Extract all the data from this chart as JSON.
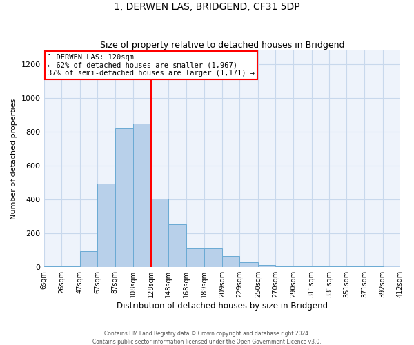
{
  "title": "1, DERWEN LAS, BRIDGEND, CF31 5DP",
  "subtitle": "Size of property relative to detached houses in Bridgend",
  "xlabel": "Distribution of detached houses by size in Bridgend",
  "ylabel": "Number of detached properties",
  "bar_color": "#b8d0ea",
  "bar_edge_color": "#6aaad4",
  "vline_x": 128,
  "vline_color": "red",
  "annotation_title": "1 DERWEN LAS: 120sqm",
  "annotation_line1": "← 62% of detached houses are smaller (1,967)",
  "annotation_line2": "37% of semi-detached houses are larger (1,171) →",
  "footer_line1": "Contains HM Land Registry data © Crown copyright and database right 2024.",
  "footer_line2": "Contains public sector information licensed under the Open Government Licence v3.0.",
  "bin_edges": [
    6,
    26,
    47,
    67,
    87,
    108,
    128,
    148,
    168,
    189,
    209,
    229,
    250,
    270,
    290,
    311,
    331,
    351,
    371,
    392,
    412
  ],
  "bin_labels": [
    "6sqm",
    "26sqm",
    "47sqm",
    "67sqm",
    "87sqm",
    "108sqm",
    "128sqm",
    "148sqm",
    "168sqm",
    "189sqm",
    "209sqm",
    "229sqm",
    "250sqm",
    "270sqm",
    "290sqm",
    "311sqm",
    "331sqm",
    "351sqm",
    "371sqm",
    "392sqm",
    "412sqm"
  ],
  "counts": [
    5,
    5,
    95,
    495,
    820,
    850,
    405,
    255,
    110,
    110,
    65,
    30,
    15,
    5,
    5,
    5,
    5,
    5,
    5,
    10
  ],
  "ylim": [
    0,
    1280
  ],
  "yticks": [
    0,
    200,
    400,
    600,
    800,
    1000,
    1200
  ],
  "bg_color": "#eef3fb",
  "grid_color": "#c8d8ec"
}
